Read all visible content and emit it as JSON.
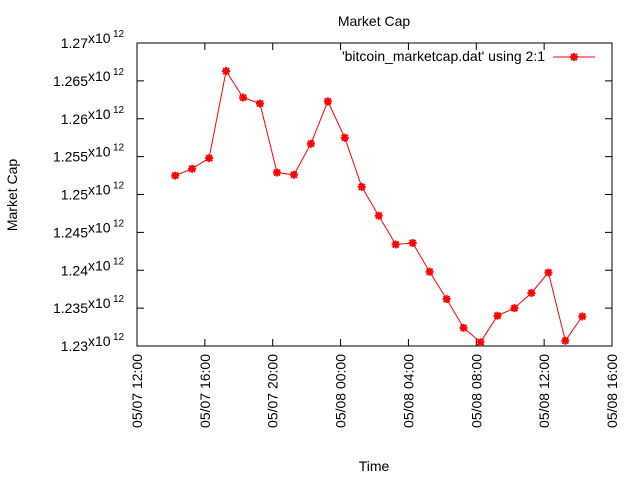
{
  "chart_data": {
    "type": "line",
    "title": "Market Cap",
    "xlabel": "Time",
    "ylabel": "Market Cap",
    "legend": {
      "label": "'bitcoin_marketcap.dat' using 2:1",
      "position": "top-right"
    },
    "series_color": "#ff0000",
    "grid": false,
    "xlim": [
      "05/07 12:00",
      "05/08 16:00"
    ],
    "ylim": [
      1230000000000.0,
      1270000000000.0
    ],
    "x_ticks": [
      "05/07 12:00",
      "05/07 16:00",
      "05/07 20:00",
      "05/08 00:00",
      "05/08 04:00",
      "05/08 08:00",
      "05/08 12:00",
      "05/08 16:00"
    ],
    "y_ticks": [
      {
        "mant": "1.23",
        "exp": "12",
        "value": 1230000000000.0
      },
      {
        "mant": "1.235",
        "exp": "12",
        "value": 1235000000000.0
      },
      {
        "mant": "1.24",
        "exp": "12",
        "value": 1240000000000.0
      },
      {
        "mant": "1.245",
        "exp": "12",
        "value": 1245000000000.0
      },
      {
        "mant": "1.25",
        "exp": "12",
        "value": 1250000000000.0
      },
      {
        "mant": "1.255",
        "exp": "12",
        "value": 1255000000000.0
      },
      {
        "mant": "1.26",
        "exp": "12",
        "value": 1260000000000.0
      },
      {
        "mant": "1.265",
        "exp": "12",
        "value": 1265000000000.0
      },
      {
        "mant": "1.27",
        "exp": "12",
        "value": 1270000000000.0
      }
    ],
    "series": [
      {
        "name": "'bitcoin_marketcap.dat' using 2:1",
        "points": [
          {
            "x": "05/07 14:15",
            "y": 1252500000000.0
          },
          {
            "x": "05/07 15:15",
            "y": 1253400000000.0
          },
          {
            "x": "05/07 16:15",
            "y": 1254800000000.0
          },
          {
            "x": "05/07 17:15",
            "y": 1266300000000.0
          },
          {
            "x": "05/07 18:15",
            "y": 1262800000000.0
          },
          {
            "x": "05/07 19:15",
            "y": 1262000000000.0
          },
          {
            "x": "05/07 20:15",
            "y": 1252900000000.0
          },
          {
            "x": "05/07 21:15",
            "y": 1252600000000.0
          },
          {
            "x": "05/07 22:15",
            "y": 1256700000000.0
          },
          {
            "x": "05/07 23:15",
            "y": 1262300000000.0
          },
          {
            "x": "05/08 00:15",
            "y": 1257500000000.0
          },
          {
            "x": "05/08 01:15",
            "y": 1251000000000.0
          },
          {
            "x": "05/08 02:15",
            "y": 1247200000000.0
          },
          {
            "x": "05/08 03:15",
            "y": 1243400000000.0
          },
          {
            "x": "05/08 04:15",
            "y": 1243600000000.0
          },
          {
            "x": "05/08 05:15",
            "y": 1239800000000.0
          },
          {
            "x": "05/08 06:15",
            "y": 1236200000000.0
          },
          {
            "x": "05/08 07:15",
            "y": 1232400000000.0
          },
          {
            "x": "05/08 08:15",
            "y": 1230500000000.0
          },
          {
            "x": "05/08 09:15",
            "y": 1234000000000.0
          },
          {
            "x": "05/08 10:15",
            "y": 1235000000000.0
          },
          {
            "x": "05/08 11:15",
            "y": 1237000000000.0
          },
          {
            "x": "05/08 12:15",
            "y": 1239700000000.0
          },
          {
            "x": "05/08 13:15",
            "y": 1230700000000.0
          },
          {
            "x": "05/08 14:15",
            "y": 1233900000000.0
          }
        ]
      }
    ]
  }
}
